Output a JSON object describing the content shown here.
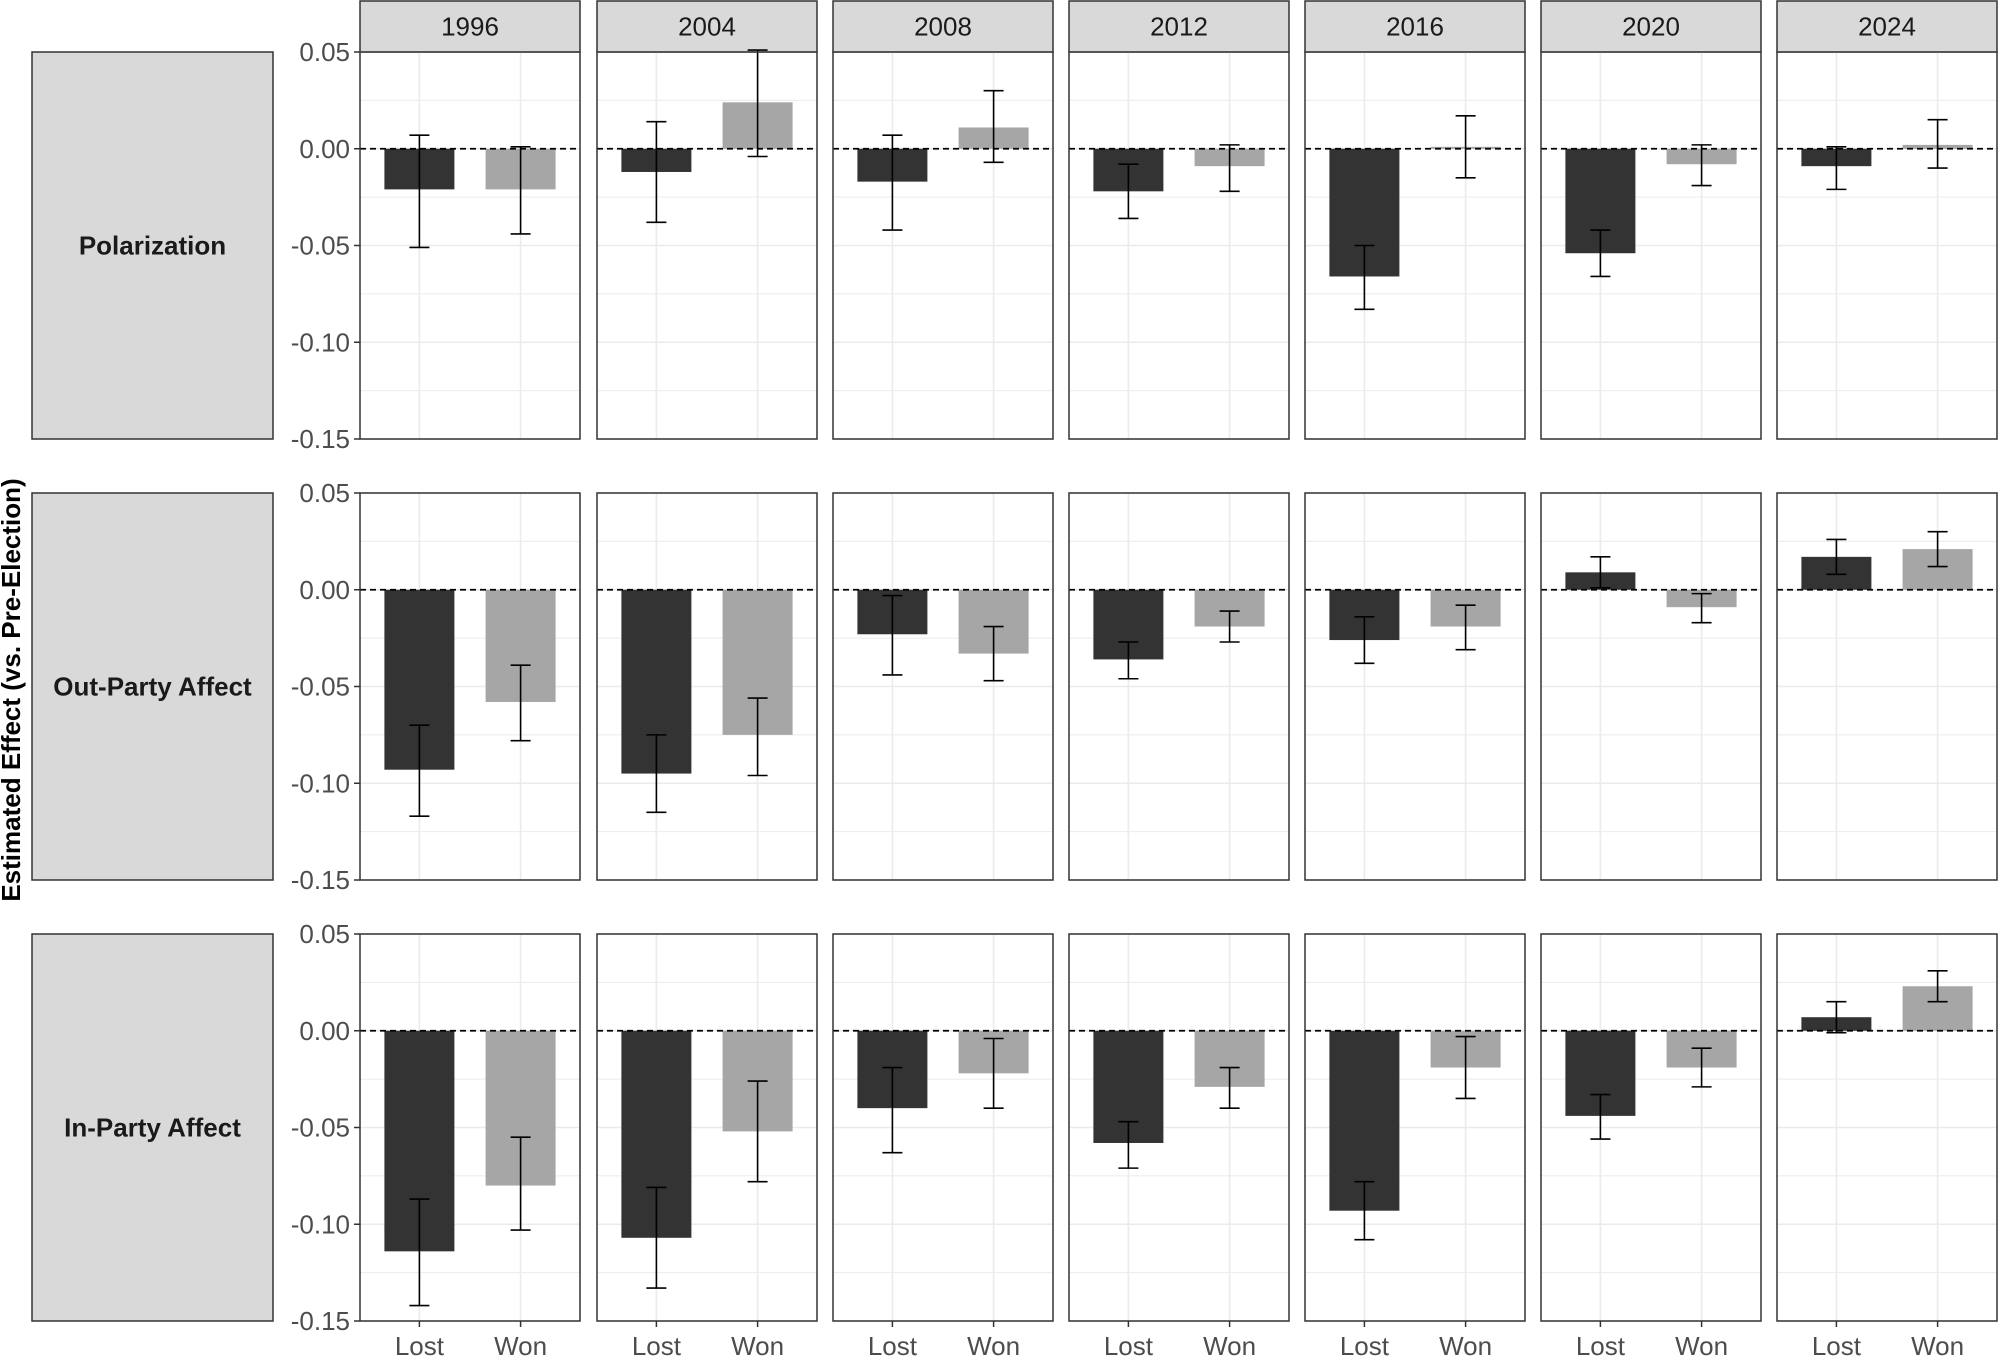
{
  "chart_data": {
    "type": "bar",
    "ylabel": "Estimated Effect (vs. Pre-Election)",
    "xlabel": "",
    "facet_columns": [
      "1996",
      "2004",
      "2008",
      "2012",
      "2016",
      "2020",
      "2024"
    ],
    "facet_rows": [
      "Polarization",
      "Out-Party Affect",
      "In-Party Affect"
    ],
    "categories": [
      "Lost",
      "Won"
    ],
    "ylim": [
      -0.15,
      0.05
    ],
    "yticks": [
      0.05,
      0.0,
      -0.05,
      -0.1,
      -0.15
    ],
    "ytick_labels": [
      "0.05",
      "0.00",
      "-0.05",
      "-0.10",
      "-0.15"
    ],
    "reference_line": 0,
    "colors": {
      "Lost": "#333333",
      "Won": "#a6a6a6",
      "strip": "#d9d9d9",
      "grid": "#ebebeb"
    },
    "panels": {
      "Polarization": {
        "1996": {
          "Lost": {
            "value": -0.021,
            "lo": -0.051,
            "hi": 0.007
          },
          "Won": {
            "value": -0.021,
            "lo": -0.044,
            "hi": 0.001
          }
        },
        "2004": {
          "Lost": {
            "value": -0.012,
            "lo": -0.038,
            "hi": 0.014
          },
          "Won": {
            "value": 0.024,
            "lo": -0.004,
            "hi": 0.051
          }
        },
        "2008": {
          "Lost": {
            "value": -0.017,
            "lo": -0.042,
            "hi": 0.007
          },
          "Won": {
            "value": 0.011,
            "lo": -0.007,
            "hi": 0.03
          }
        },
        "2012": {
          "Lost": {
            "value": -0.022,
            "lo": -0.036,
            "hi": -0.008
          },
          "Won": {
            "value": -0.009,
            "lo": -0.022,
            "hi": 0.002
          }
        },
        "2016": {
          "Lost": {
            "value": -0.066,
            "lo": -0.083,
            "hi": -0.05
          },
          "Won": {
            "value": 0.001,
            "lo": -0.015,
            "hi": 0.017
          }
        },
        "2020": {
          "Lost": {
            "value": -0.054,
            "lo": -0.066,
            "hi": -0.042
          },
          "Won": {
            "value": -0.008,
            "lo": -0.019,
            "hi": 0.002
          }
        },
        "2024": {
          "Lost": {
            "value": -0.009,
            "lo": -0.021,
            "hi": 0.001
          },
          "Won": {
            "value": 0.002,
            "lo": -0.01,
            "hi": 0.015
          }
        }
      },
      "Out-Party Affect": {
        "1996": {
          "Lost": {
            "value": -0.093,
            "lo": -0.117,
            "hi": -0.07
          },
          "Won": {
            "value": -0.058,
            "lo": -0.078,
            "hi": -0.039
          }
        },
        "2004": {
          "Lost": {
            "value": -0.095,
            "lo": -0.115,
            "hi": -0.075
          },
          "Won": {
            "value": -0.075,
            "lo": -0.096,
            "hi": -0.056
          }
        },
        "2008": {
          "Lost": {
            "value": -0.023,
            "lo": -0.044,
            "hi": -0.003
          },
          "Won": {
            "value": -0.033,
            "lo": -0.047,
            "hi": -0.019
          }
        },
        "2012": {
          "Lost": {
            "value": -0.036,
            "lo": -0.046,
            "hi": -0.027
          },
          "Won": {
            "value": -0.019,
            "lo": -0.027,
            "hi": -0.011
          }
        },
        "2016": {
          "Lost": {
            "value": -0.026,
            "lo": -0.038,
            "hi": -0.014
          },
          "Won": {
            "value": -0.019,
            "lo": -0.031,
            "hi": -0.008
          }
        },
        "2020": {
          "Lost": {
            "value": 0.009,
            "lo": 0.001,
            "hi": 0.017
          },
          "Won": {
            "value": -0.009,
            "lo": -0.017,
            "hi": -0.002
          }
        },
        "2024": {
          "Lost": {
            "value": 0.017,
            "lo": 0.008,
            "hi": 0.026
          },
          "Won": {
            "value": 0.021,
            "lo": 0.012,
            "hi": 0.03
          }
        }
      },
      "In-Party Affect": {
        "1996": {
          "Lost": {
            "value": -0.114,
            "lo": -0.142,
            "hi": -0.087
          },
          "Won": {
            "value": -0.08,
            "lo": -0.103,
            "hi": -0.055
          }
        },
        "2004": {
          "Lost": {
            "value": -0.107,
            "lo": -0.133,
            "hi": -0.081
          },
          "Won": {
            "value": -0.052,
            "lo": -0.078,
            "hi": -0.026
          }
        },
        "2008": {
          "Lost": {
            "value": -0.04,
            "lo": -0.063,
            "hi": -0.019
          },
          "Won": {
            "value": -0.022,
            "lo": -0.04,
            "hi": -0.004
          }
        },
        "2012": {
          "Lost": {
            "value": -0.058,
            "lo": -0.071,
            "hi": -0.047
          },
          "Won": {
            "value": -0.029,
            "lo": -0.04,
            "hi": -0.019
          }
        },
        "2016": {
          "Lost": {
            "value": -0.093,
            "lo": -0.108,
            "hi": -0.078
          },
          "Won": {
            "value": -0.019,
            "lo": -0.035,
            "hi": -0.003
          }
        },
        "2020": {
          "Lost": {
            "value": -0.044,
            "lo": -0.056,
            "hi": -0.033
          },
          "Won": {
            "value": -0.019,
            "lo": -0.029,
            "hi": -0.009
          }
        },
        "2024": {
          "Lost": {
            "value": 0.007,
            "lo": -0.001,
            "hi": 0.015
          },
          "Won": {
            "value": 0.023,
            "lo": 0.015,
            "hi": 0.031
          }
        }
      }
    }
  }
}
